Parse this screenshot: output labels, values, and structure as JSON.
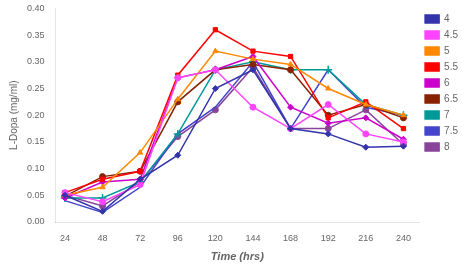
{
  "chart_data": {
    "type": "line",
    "x_label": "Time (hrs)",
    "y_label": "L-Dopa (mg/ml)",
    "x": [
      24,
      48,
      72,
      96,
      120,
      144,
      168,
      192,
      216,
      240
    ],
    "series": [
      {
        "name": "4",
        "color": "#3333AA",
        "marker": "diamond",
        "values": [
          0.05,
          0.02,
          0.08,
          0.125,
          0.25,
          0.285,
          0.175,
          0.165,
          0.14,
          0.142
        ]
      },
      {
        "name": "4.5",
        "color": "#FF44FF",
        "marker": "circle",
        "values": [
          0.055,
          0.038,
          0.07,
          0.27,
          0.285,
          0.215,
          0.175,
          0.22,
          0.165,
          0.15
        ]
      },
      {
        "name": "5",
        "color": "#FF8800",
        "marker": "triangle",
        "values": [
          0.05,
          0.065,
          0.13,
          0.23,
          0.32,
          0.305,
          0.295,
          0.25,
          0.22,
          0.2
        ]
      },
      {
        "name": "5.5",
        "color": "#FF0000",
        "marker": "square",
        "values": [
          0.055,
          0.08,
          0.095,
          0.275,
          0.36,
          0.32,
          0.31,
          0.195,
          0.225,
          0.175
        ]
      },
      {
        "name": "6",
        "color": "#CC00CC",
        "marker": "diamond",
        "values": [
          0.045,
          0.075,
          0.08,
          0.27,
          0.285,
          0.31,
          0.215,
          0.185,
          0.195,
          0.155
        ]
      },
      {
        "name": "6.5",
        "color": "#882200",
        "marker": "circle",
        "values": [
          0.048,
          0.085,
          0.095,
          0.225,
          0.285,
          0.295,
          0.285,
          0.2,
          0.22,
          0.195
        ]
      },
      {
        "name": "7",
        "color": "#009999",
        "marker": "plus",
        "values": [
          0.045,
          0.045,
          0.075,
          0.165,
          0.285,
          0.3,
          0.285,
          0.285,
          0.22,
          0.2
        ]
      },
      {
        "name": "7.5",
        "color": "#4444CC",
        "marker": "none",
        "values": [
          0.04,
          0.018,
          0.065,
          0.165,
          0.215,
          0.3,
          0.175,
          0.285,
          0.215,
          0.2
        ]
      },
      {
        "name": "8",
        "color": "#884499",
        "marker": "circle",
        "values": [
          0.05,
          0.03,
          0.075,
          0.16,
          0.21,
          0.29,
          0.175,
          0.175,
          0.21,
          0.145
        ]
      }
    ],
    "xlim": [
      18,
      250
    ],
    "xticks": [
      24,
      48,
      72,
      96,
      120,
      144,
      168,
      192,
      216,
      240
    ],
    "ylim": [
      0,
      0.4
    ],
    "yticks": [
      {
        "value": 0,
        "label": "0.00"
      },
      {
        "value": 0.05,
        "label": "0.05"
      },
      {
        "value": 0.1,
        "label": "0.10"
      },
      {
        "value": 0.15,
        "label": "0.15"
      },
      {
        "value": 0.2,
        "label": "0.20"
      },
      {
        "value": 0.25,
        "label": "0.25"
      },
      {
        "value": 0.3,
        "label": "0.30"
      },
      {
        "value": 0.35,
        "label": "0.35"
      },
      {
        "value": 0.4,
        "label": "0.40"
      }
    ],
    "grid": false,
    "legend": "right"
  }
}
